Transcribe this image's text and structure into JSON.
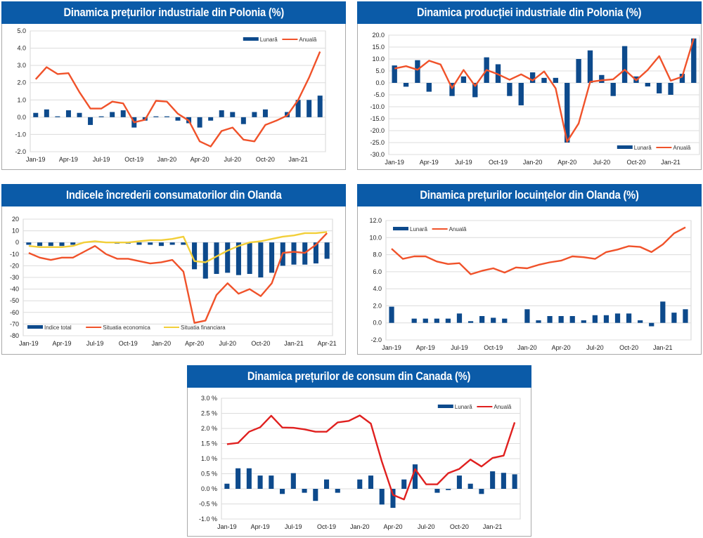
{
  "page": {
    "colors": {
      "header_bg": "#0b5ba8",
      "header_text": "#ffffff",
      "bar": "#0d4a8c",
      "line_orange": "#f0522a",
      "line_red": "#e0201f",
      "line_yellow": "#f2cf3a"
    }
  },
  "chart_data": [
    {
      "id": "pl-ppi",
      "type": "bar+line",
      "title": "Dinamica prețurilor industriale din Polonia (%)",
      "xlabel": "",
      "ylabel": "",
      "ylim": [
        -2.0,
        5.0
      ],
      "ystep": 1.0,
      "ytick_format": "fixed1",
      "grid": true,
      "legend_position": "top-right",
      "x_tick_labels": [
        "Jan-19",
        "Apr-19",
        "Jul-19",
        "Oct-19",
        "Jan-20",
        "Apr-20",
        "Jul-20",
        "Oct-20",
        "Jan-21"
      ],
      "categories": [
        "Jan-19",
        "Feb-19",
        "Mar-19",
        "Apr-19",
        "May-19",
        "Jun-19",
        "Jul-19",
        "Aug-19",
        "Sep-19",
        "Oct-19",
        "Nov-19",
        "Dec-19",
        "Jan-20",
        "Feb-20",
        "Mar-20",
        "Apr-20",
        "May-20",
        "Jun-20",
        "Jul-20",
        "Aug-20",
        "Sep-20",
        "Oct-20",
        "Nov-20",
        "Dec-20",
        "Jan-21",
        "Feb-21",
        "Mar-21"
      ],
      "series": [
        {
          "name": "Lunară",
          "kind": "bar",
          "color": "#0d4a8c",
          "values": [
            0.25,
            0.45,
            0.05,
            0.4,
            0.25,
            -0.45,
            0.05,
            0.3,
            0.4,
            -0.6,
            -0.2,
            0.05,
            0.05,
            -0.2,
            -0.35,
            -0.6,
            -0.2,
            0.4,
            0.3,
            -0.4,
            0.3,
            0.45,
            0.0,
            0.3,
            1.0,
            1.0,
            1.25
          ]
        },
        {
          "name": "Anuală",
          "kind": "line",
          "color": "#f0522a",
          "values": [
            2.2,
            2.9,
            2.5,
            2.55,
            1.45,
            0.5,
            0.5,
            0.9,
            0.8,
            -0.3,
            -0.15,
            0.95,
            0.9,
            0.2,
            -0.2,
            -1.4,
            -1.7,
            -0.8,
            -0.6,
            -1.3,
            -1.4,
            -0.45,
            -0.2,
            0.1,
            1.0,
            2.3,
            3.8
          ]
        }
      ]
    },
    {
      "id": "pl-ip",
      "type": "bar+line",
      "title": "Dinamica producției industriale din Polonia (%)",
      "xlabel": "",
      "ylabel": "",
      "ylim": [
        -30.0,
        20.0
      ],
      "ystep": 5.0,
      "ytick_format": "fixed1",
      "grid": true,
      "legend_position": "bottom-right",
      "x_tick_labels": [
        "Jan-19",
        "Apr-19",
        "Jul-19",
        "Oct-19",
        "Jan-20",
        "Apr-20",
        "Jul-20",
        "Oct-20",
        "Jan-21"
      ],
      "categories": [
        "Jan-19",
        "Feb-19",
        "Mar-19",
        "Apr-19",
        "May-19",
        "Jun-19",
        "Jul-19",
        "Aug-19",
        "Sep-19",
        "Oct-19",
        "Nov-19",
        "Dec-19",
        "Jan-20",
        "Feb-20",
        "Mar-20",
        "Apr-20",
        "May-20",
        "Jun-20",
        "Jul-20",
        "Aug-20",
        "Sep-20",
        "Oct-20",
        "Nov-20",
        "Dec-20",
        "Jan-21",
        "Feb-21",
        "Mar-21"
      ],
      "series": [
        {
          "name": "Lunară",
          "kind": "bar",
          "color": "#0d4a8c",
          "values": [
            7.3,
            -1.6,
            9.5,
            -3.7,
            0.0,
            -5.5,
            2.7,
            -6.0,
            10.7,
            7.8,
            -5.5,
            -9.4,
            4.4,
            2.1,
            2.1,
            -25.0,
            10.0,
            13.6,
            3.3,
            -5.5,
            15.4,
            2.7,
            -1.5,
            -4.4,
            -5.0,
            3.8,
            18.6
          ]
        },
        {
          "name": "Anuală",
          "kind": "line",
          "color": "#f0522a",
          "values": [
            6.0,
            7.0,
            5.5,
            9.3,
            7.7,
            -2.2,
            5.4,
            -1.3,
            5.4,
            3.6,
            1.3,
            3.6,
            1.0,
            4.8,
            -2.3,
            -24.6,
            -17.0,
            0.4,
            1.1,
            1.5,
            5.5,
            1.1,
            5.4,
            11.2,
            0.9,
            2.6,
            18.6
          ]
        }
      ]
    },
    {
      "id": "nl-conf",
      "type": "bar+line",
      "title": "Indicele încrederii consumatorilor din Olanda",
      "xlabel": "",
      "ylabel": "",
      "ylim": [
        -80,
        20
      ],
      "ystep": 10,
      "ytick_format": "int",
      "grid": true,
      "legend_position": "bottom-left",
      "x_tick_labels": [
        "Jan-19",
        "Apr-19",
        "Jul-19",
        "Oct-19",
        "Jan-20",
        "Apr-20",
        "Jul-20",
        "Oct-20",
        "Jan-21",
        "Apr-21"
      ],
      "categories": [
        "Jan-19",
        "Feb-19",
        "Mar-19",
        "Apr-19",
        "May-19",
        "Jun-19",
        "Jul-19",
        "Aug-19",
        "Sep-19",
        "Oct-19",
        "Nov-19",
        "Dec-19",
        "Jan-20",
        "Feb-20",
        "Mar-20",
        "Apr-20",
        "May-20",
        "Jun-20",
        "Jul-20",
        "Aug-20",
        "Sep-20",
        "Oct-20",
        "Nov-20",
        "Dec-20",
        "Jan-21",
        "Feb-21",
        "Mar-21",
        "Apr-21"
      ],
      "series": [
        {
          "name": "Indice total",
          "kind": "bar",
          "color": "#0d4a8c",
          "values": [
            -2,
            -3,
            -3,
            -3,
            -2,
            0,
            0,
            0,
            -1,
            -1,
            -2,
            -2,
            -3,
            -2,
            -2,
            -23,
            -31,
            -27,
            -26,
            -28,
            -27,
            -30,
            -26,
            -20,
            -19,
            -19,
            -18,
            -14
          ]
        },
        {
          "name": "Situatia economica",
          "kind": "line",
          "color": "#f0522a",
          "values": [
            -9,
            -13,
            -15,
            -13,
            -13,
            -8,
            -3,
            -10,
            -14,
            -14,
            -16,
            -18,
            -17,
            -15,
            -25,
            -69,
            -67,
            -45,
            -35,
            -44,
            -40,
            -46,
            -35,
            -9,
            -8,
            -9,
            -2,
            8
          ]
        },
        {
          "name": "Situatia financiara",
          "kind": "line",
          "color": "#f2cf3a",
          "values": [
            -3,
            -4,
            -4,
            -4,
            -3,
            0,
            1,
            0,
            0,
            0,
            1,
            2,
            2,
            3,
            5,
            -16,
            -17,
            -12,
            -7,
            -3,
            0,
            1,
            3,
            5,
            6,
            8,
            8,
            9
          ]
        }
      ]
    },
    {
      "id": "nl-hpi",
      "type": "bar+line",
      "title": "Dinamica prețurilor locuințelor din Olanda (%)",
      "xlabel": "",
      "ylabel": "",
      "ylim": [
        -2.0,
        12.0
      ],
      "ystep": 2.0,
      "ytick_format": "fixed1",
      "grid": true,
      "legend_position": "top-left",
      "x_tick_labels": [
        "Jan-19",
        "Apr-19",
        "Jul-19",
        "Oct-19",
        "Jan-20",
        "Apr-20",
        "Jul-20",
        "Oct-20",
        "Jan-21"
      ],
      "categories": [
        "Jan-19",
        "Feb-19",
        "Mar-19",
        "Apr-19",
        "May-19",
        "Jun-19",
        "Jul-19",
        "Aug-19",
        "Sep-19",
        "Oct-19",
        "Nov-19",
        "Dec-19",
        "Jan-20",
        "Feb-20",
        "Mar-20",
        "Apr-20",
        "May-20",
        "Jun-20",
        "Jul-20",
        "Aug-20",
        "Sep-20",
        "Oct-20",
        "Nov-20",
        "Dec-20",
        "Jan-21",
        "Feb-21",
        "Mar-21"
      ],
      "series": [
        {
          "name": "Lunară",
          "kind": "bar",
          "color": "#0d4a8c",
          "values": [
            1.9,
            0.0,
            0.5,
            0.5,
            0.5,
            0.5,
            1.1,
            0.2,
            0.8,
            0.6,
            0.5,
            0.0,
            1.6,
            0.3,
            0.8,
            0.8,
            0.8,
            0.3,
            0.9,
            0.9,
            1.1,
            1.1,
            0.3,
            -0.4,
            2.5,
            1.2,
            1.6
          ]
        },
        {
          "name": "Anuală",
          "kind": "line",
          "color": "#f0522a",
          "values": [
            8.7,
            7.5,
            7.8,
            7.8,
            7.2,
            6.9,
            7.0,
            5.7,
            6.1,
            6.4,
            5.9,
            6.5,
            6.4,
            6.8,
            7.1,
            7.3,
            7.8,
            7.7,
            7.5,
            8.3,
            8.6,
            9.0,
            8.9,
            8.3,
            9.2,
            10.5,
            11.2
          ]
        }
      ]
    },
    {
      "id": "ca-cpi",
      "type": "bar+line",
      "title": "Dinamica prețurilor de consum din Canada (%)",
      "xlabel": "",
      "ylabel": "",
      "ylim": [
        -1.0,
        3.0
      ],
      "ystep": 0.5,
      "ytick_format": "pct1",
      "grid": true,
      "legend_position": "top-right",
      "x_tick_labels": [
        "Jan-19",
        "Apr-19",
        "Jul-19",
        "Oct-19",
        "Jan-20",
        "Apr-20",
        "Jul-20",
        "Oct-20",
        "Jan-21"
      ],
      "categories": [
        "Jan-19",
        "Feb-19",
        "Mar-19",
        "Apr-19",
        "May-19",
        "Jun-19",
        "Jul-19",
        "Aug-19",
        "Sep-19",
        "Oct-19",
        "Nov-19",
        "Dec-19",
        "Jan-20",
        "Feb-20",
        "Mar-20",
        "Apr-20",
        "May-20",
        "Jun-20",
        "Jul-20",
        "Aug-20",
        "Sep-20",
        "Oct-20",
        "Nov-20",
        "Dec-20",
        "Jan-21",
        "Feb-21",
        "Mar-21"
      ],
      "series": [
        {
          "name": "Lunară",
          "kind": "bar",
          "color": "#0d4a8c",
          "values": [
            0.17,
            0.68,
            0.68,
            0.44,
            0.44,
            -0.17,
            0.52,
            -0.13,
            -0.4,
            0.31,
            -0.13,
            0.0,
            0.31,
            0.44,
            -0.52,
            -0.63,
            0.31,
            0.81,
            0.0,
            -0.13,
            -0.04,
            0.44,
            0.17,
            -0.17,
            0.58,
            0.53,
            0.48
          ]
        },
        {
          "name": "Anuală",
          "kind": "line",
          "color": "#e0201f",
          "values": [
            1.48,
            1.52,
            1.89,
            2.04,
            2.42,
            2.03,
            2.02,
            1.97,
            1.89,
            1.89,
            2.2,
            2.25,
            2.43,
            2.16,
            0.9,
            -0.2,
            -0.35,
            0.65,
            0.15,
            0.15,
            0.52,
            0.66,
            0.97,
            0.74,
            1.02,
            1.1,
            2.2
          ]
        }
      ]
    }
  ]
}
